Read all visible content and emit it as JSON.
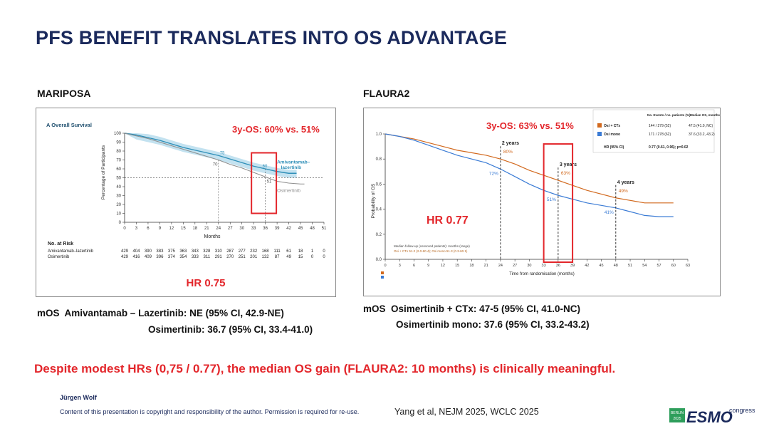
{
  "slide": {
    "title": "PFS BENEFIT TRANSLATES INTO OS ADVANTAGE",
    "conclusion": "Despite modest HRs (0,75 / 0.77), the median OS gain (FLAURA2: 10 months) is clinically meaningful.",
    "author": "Jürgen Wolf",
    "copyright": "Content of this presentation is copyright and responsibility of the author. Permission is required for re-use.",
    "reference": "Yang et al, NEJM 2025, WCLC 2025",
    "logo": {
      "city": "BERLIN",
      "year": "2025",
      "brand": "ESMO",
      "suffix": "congress",
      "colors": {
        "brand": "#1b2a5c",
        "accent": "#2e9e5b"
      }
    }
  },
  "mariposa": {
    "heading": "MARIPOSA",
    "panel_label": "A  Overall Survival",
    "highlight": "3y-OS: 60% vs. 51%",
    "hr": "HR 0.75",
    "mos_prefix": "mOS",
    "mos_line1": "Amivantamab – Lazertinib: NE   (95% CI, 42.9-NE)",
    "mos_line2": "Osimertinib: 36.7 (95% CI, 33.4-41.0)",
    "at_risk": {
      "header": "No. at Risk",
      "rows": [
        {
          "label": "Amivantamab–lazertinib",
          "values": [
            "429",
            "404",
            "390",
            "383",
            "375",
            "363",
            "343",
            "328",
            "310",
            "287",
            "277",
            "232",
            "168",
            "111",
            "61",
            "18",
            "1",
            "0"
          ]
        },
        {
          "label": "Osimertinib",
          "values": [
            "429",
            "416",
            "409",
            "396",
            "374",
            "354",
            "333",
            "311",
            "291",
            "270",
            "251",
            "201",
            "132",
            "87",
            "49",
            "15",
            "0",
            "0"
          ]
        }
      ]
    },
    "chart_data": {
      "type": "line",
      "xlabel": "Months",
      "ylabel": "Percentage of Participants",
      "xlim": [
        0,
        51
      ],
      "ylim": [
        0,
        100
      ],
      "xticks": [
        0,
        3,
        6,
        9,
        12,
        15,
        18,
        21,
        24,
        27,
        30,
        33,
        36,
        39,
        42,
        45,
        48,
        51
      ],
      "yticks": [
        0,
        10,
        20,
        30,
        40,
        50,
        60,
        70,
        80,
        90,
        100
      ],
      "annotations": [
        "75",
        "70",
        "60",
        "51"
      ],
      "series": [
        {
          "name": "Amivantamab–lazertinib",
          "color": "#2f8fb8",
          "x": [
            0,
            3,
            6,
            9,
            12,
            15,
            18,
            21,
            24,
            27,
            30,
            33,
            36,
            39,
            42,
            44
          ],
          "y": [
            100,
            98,
            95,
            92,
            88,
            84,
            81,
            78,
            75,
            71,
            67,
            63,
            60,
            57,
            55,
            55
          ]
        },
        {
          "name": "Osimertinib",
          "color": "#8f8f8f",
          "x": [
            0,
            3,
            6,
            9,
            12,
            15,
            18,
            21,
            24,
            27,
            30,
            33,
            36,
            39,
            42,
            45,
            46
          ],
          "y": [
            100,
            97,
            94,
            90,
            86,
            82,
            78,
            74,
            70,
            65,
            61,
            56,
            51,
            46,
            44,
            43,
            43
          ]
        }
      ],
      "ci_band_color": "#a9d5ea",
      "marker_x": 36,
      "marker_y_levels": [
        70,
        50
      ]
    }
  },
  "flaura2": {
    "heading": "FLAURA2",
    "highlight": "3y-OS: 63% vs. 51%",
    "hr": "HR 0.77",
    "mos_prefix": "mOS",
    "mos_line1": "Osimertinib + CTx: 47-5 (95% CI, 41.0-NC)",
    "mos_line2": "Osimertinib mono: 37.6 (95% CI, 33.2-43.2)",
    "legend": {
      "headers": [
        "No. Events / no. patients (%)",
        "Median OS, months (95% CI)"
      ],
      "rows": [
        {
          "label": "Osi + CTx",
          "color": "#d2691e",
          "events": "144 / 279 (52)",
          "median": "47.5 (41.0, NC)"
        },
        {
          "label": "Osi mono",
          "color": "#3a7bd5",
          "events": "171 / 278 (62)",
          "median": "37.6 (33.2, 43.2)"
        }
      ],
      "hr_label": "HR (95% CI)",
      "hr_value": "0.77 (0.61, 0.96); p=0.02"
    },
    "followup_line1": "Median follow-up (censored patients): months (range)",
    "followup_line2": "Osi + CTx 51.2 (2.0-60.4); Osi mono 51.3 (0.3-60.1)",
    "chart_data": {
      "type": "line",
      "xlabel": "Time from randomisation (months)",
      "ylabel": "Probability of OS",
      "xlim": [
        0,
        63
      ],
      "ylim": [
        0,
        1.0
      ],
      "xticks": [
        0,
        3,
        6,
        9,
        12,
        15,
        18,
        21,
        24,
        27,
        30,
        33,
        36,
        39,
        42,
        45,
        48,
        51,
        54,
        57,
        60,
        63
      ],
      "yticks": [
        0.0,
        0.2,
        0.4,
        0.6,
        0.8,
        1.0
      ],
      "milestones": [
        {
          "x": 24,
          "label": "2 years",
          "osi_ctx": "80%",
          "osi_mono": "72%"
        },
        {
          "x": 36,
          "label": "3 years",
          "osi_ctx": "63%",
          "osi_mono": "51%"
        },
        {
          "x": 48,
          "label": "4 years",
          "osi_ctx": "49%",
          "osi_mono": "41%"
        }
      ],
      "series": [
        {
          "name": "Osi + CTx",
          "color": "#d2691e",
          "x": [
            0,
            3,
            6,
            9,
            12,
            15,
            18,
            21,
            24,
            27,
            30,
            33,
            36,
            39,
            42,
            45,
            48,
            51,
            54,
            57,
            60
          ],
          "y": [
            1.0,
            0.98,
            0.96,
            0.93,
            0.9,
            0.87,
            0.85,
            0.83,
            0.8,
            0.76,
            0.71,
            0.67,
            0.63,
            0.59,
            0.55,
            0.52,
            0.49,
            0.47,
            0.45,
            0.45,
            0.45
          ]
        },
        {
          "name": "Osi mono",
          "color": "#3a7bd5",
          "x": [
            0,
            3,
            6,
            9,
            12,
            15,
            18,
            21,
            24,
            27,
            30,
            33,
            36,
            39,
            42,
            45,
            48,
            51,
            54,
            57,
            60
          ],
          "y": [
            1.0,
            0.98,
            0.95,
            0.91,
            0.87,
            0.83,
            0.8,
            0.77,
            0.72,
            0.66,
            0.6,
            0.55,
            0.51,
            0.48,
            0.45,
            0.43,
            0.41,
            0.38,
            0.35,
            0.34,
            0.34
          ]
        }
      ]
    }
  }
}
